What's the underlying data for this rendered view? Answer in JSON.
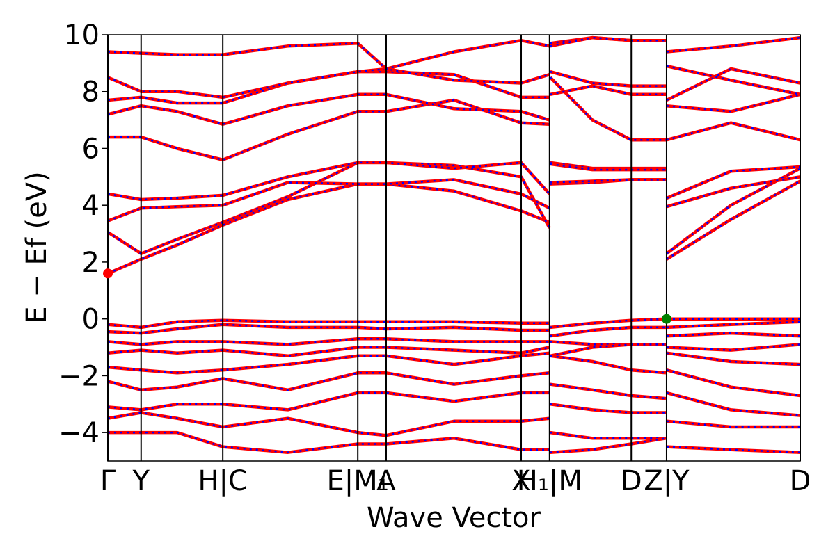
{
  "chart_data": {
    "type": "line",
    "xlabel": "Wave Vector",
    "ylabel": "E − Ef (eV)",
    "xlim": [
      0,
      10
    ],
    "ylim": [
      -5,
      10
    ],
    "xticks": [
      {
        "value": 0,
        "label": "Γ"
      },
      {
        "value": 0.48,
        "label": "Y"
      },
      {
        "value": 1.66,
        "label": "H|C"
      },
      {
        "value": 3.61,
        "label": "E|M₁"
      },
      {
        "value": 4.02,
        "label": "A"
      },
      {
        "value": 5.97,
        "label": "X"
      },
      {
        "value": 6.38,
        "label": "H₁|M"
      },
      {
        "value": 7.56,
        "label": "D"
      },
      {
        "value": 8.07,
        "label": "Z|Y"
      },
      {
        "value": 10,
        "label": "D"
      }
    ],
    "yticks": [
      {
        "value": -4,
        "label": "−4"
      },
      {
        "value": -2,
        "label": "−2"
      },
      0,
      2,
      4,
      6,
      8,
      10
    ],
    "overlay_color": "#0000ff",
    "x": [
      0,
      0.48,
      1.0,
      1.66,
      2.6,
      3.61,
      4.02,
      5.0,
      5.97,
      6.38,
      6.385,
      6.39,
      7.0,
      7.56,
      8.06,
      8.065,
      8.07,
      9.0,
      10.0
    ],
    "series": [
      {
        "color": "#ff0000",
        "values": [
          1.6,
          2.1,
          2.6,
          3.3,
          4.2,
          4.75,
          4.75,
          4.5,
          3.8,
          3.4,
          null,
          4.75,
          4.8,
          4.9,
          4.9,
          null,
          2.1,
          3.5,
          4.85
        ]
      },
      {
        "color": "#ff0000",
        "values": [
          3.05,
          2.3,
          2.8,
          3.4,
          4.3,
          5.5,
          5.5,
          5.4,
          5.0,
          3.2,
          null,
          5.5,
          5.3,
          5.3,
          5.3,
          null,
          2.3,
          4.0,
          5.3
        ]
      },
      {
        "color": "#ff0000",
        "values": [
          3.45,
          3.9,
          3.95,
          4.0,
          4.8,
          4.75,
          4.75,
          4.9,
          4.4,
          3.9,
          null,
          5.45,
          5.25,
          5.25,
          5.25,
          null,
          3.95,
          4.6,
          5.0
        ]
      },
      {
        "color": "#ff0000",
        "values": [
          4.4,
          4.2,
          4.25,
          4.35,
          5.0,
          5.5,
          5.5,
          5.3,
          5.5,
          4.4,
          null,
          4.8,
          4.85,
          4.9,
          4.9,
          null,
          4.25,
          5.2,
          5.35
        ]
      },
      {
        "color": "#ff0000",
        "values": [
          6.4,
          6.4,
          6.0,
          5.6,
          6.5,
          7.3,
          7.3,
          7.7,
          6.9,
          6.85,
          null,
          8.5,
          7.0,
          6.3,
          6.3,
          null,
          6.3,
          6.9,
          6.3
        ]
      },
      {
        "color": "#ff0000",
        "values": [
          7.2,
          7.5,
          7.3,
          6.85,
          7.5,
          7.9,
          7.9,
          7.4,
          7.3,
          7.0,
          null,
          9.7,
          9.9,
          9.8,
          9.8,
          null,
          7.5,
          7.3,
          7.9
        ]
      },
      {
        "color": "#ff0000",
        "values": [
          7.7,
          7.8,
          7.6,
          7.6,
          8.3,
          8.7,
          8.7,
          8.6,
          7.8,
          7.8,
          null,
          7.9,
          8.2,
          7.9,
          7.9,
          null,
          7.7,
          8.8,
          8.3
        ]
      },
      {
        "color": "#ff0000",
        "values": [
          8.5,
          8.0,
          8.0,
          7.8,
          8.3,
          8.7,
          8.8,
          8.4,
          8.3,
          8.6,
          null,
          8.7,
          8.3,
          8.2,
          8.2,
          null,
          8.9,
          8.4,
          7.9
        ]
      },
      {
        "color": "#ff0000",
        "values": [
          9.4,
          9.35,
          9.3,
          9.3,
          9.6,
          9.7,
          8.8,
          9.4,
          9.8,
          9.6,
          null,
          9.6,
          9.9,
          9.8,
          9.8,
          null,
          9.4,
          9.6,
          9.9
        ]
      },
      {
        "color": "#ff0000",
        "values": [
          -0.2,
          -0.3,
          -0.1,
          -0.05,
          -0.1,
          -0.1,
          -0.1,
          -0.1,
          -0.15,
          -0.15,
          null,
          -0.3,
          -0.15,
          -0.05,
          0,
          null,
          0,
          0,
          0
        ]
      },
      {
        "color": "#ff0000",
        "values": [
          -0.45,
          -0.5,
          -0.35,
          -0.2,
          -0.3,
          -0.3,
          -0.35,
          -0.3,
          -0.4,
          -0.4,
          null,
          -0.6,
          -0.4,
          -0.3,
          -0.3,
          null,
          -0.3,
          -0.2,
          -0.1
        ]
      },
      {
        "color": "#ff0000",
        "values": [
          -0.8,
          -0.9,
          -0.8,
          -0.8,
          -0.9,
          -0.7,
          -0.7,
          -0.8,
          -0.8,
          -0.8,
          null,
          -0.8,
          -0.9,
          -0.9,
          -0.9,
          null,
          -0.6,
          -0.5,
          -0.6
        ]
      },
      {
        "color": "#ff0000",
        "values": [
          -1.2,
          -1.1,
          -1.2,
          -1.1,
          -1.3,
          -1.0,
          -1.0,
          -1.1,
          -1.2,
          -1.0,
          null,
          -1.3,
          -1.0,
          -0.9,
          -0.9,
          null,
          -1.0,
          -1.1,
          -0.9
        ]
      },
      {
        "color": "#ff0000",
        "values": [
          -1.7,
          -1.8,
          -1.9,
          -1.8,
          -1.6,
          -1.3,
          -1.3,
          -1.6,
          -1.3,
          -1.2,
          null,
          -1.3,
          -1.5,
          -1.8,
          -1.9,
          null,
          -1.2,
          -1.5,
          -1.6
        ]
      },
      {
        "color": "#ff0000",
        "values": [
          -2.2,
          -2.5,
          -2.4,
          -2.1,
          -2.5,
          -1.9,
          -1.9,
          -2.3,
          -2.0,
          -1.9,
          null,
          -2.3,
          -2.5,
          -2.7,
          -2.8,
          null,
          -1.8,
          -2.4,
          -2.7
        ]
      },
      {
        "color": "#ff0000",
        "values": [
          -3.1,
          -3.2,
          -3.0,
          -3.0,
          -3.2,
          -2.6,
          -2.6,
          -2.9,
          -2.6,
          -2.6,
          null,
          -3.0,
          -3.2,
          -3.3,
          -3.3,
          null,
          -2.6,
          -3.2,
          -3.4
        ]
      },
      {
        "color": "#ff0000",
        "values": [
          -3.5,
          -3.3,
          -3.5,
          -3.8,
          -3.5,
          -4.0,
          -4.1,
          -3.6,
          -3.6,
          -3.5,
          null,
          -4.0,
          -4.2,
          -4.2,
          -4.2,
          null,
          -3.6,
          -3.8,
          -3.8
        ]
      },
      {
        "color": "#ff0000",
        "values": [
          -4.0,
          -4.0,
          -4.0,
          -4.5,
          -4.7,
          -4.4,
          -4.4,
          -4.2,
          -4.6,
          -4.6,
          null,
          -4.7,
          -4.6,
          -4.4,
          -4.2,
          null,
          -4.5,
          -4.6,
          -4.7
        ]
      }
    ],
    "points": [
      {
        "x": 0,
        "y": 1.6,
        "color": "#ff0000"
      },
      {
        "x": 8.07,
        "y": 0,
        "color": "#008000"
      }
    ]
  }
}
